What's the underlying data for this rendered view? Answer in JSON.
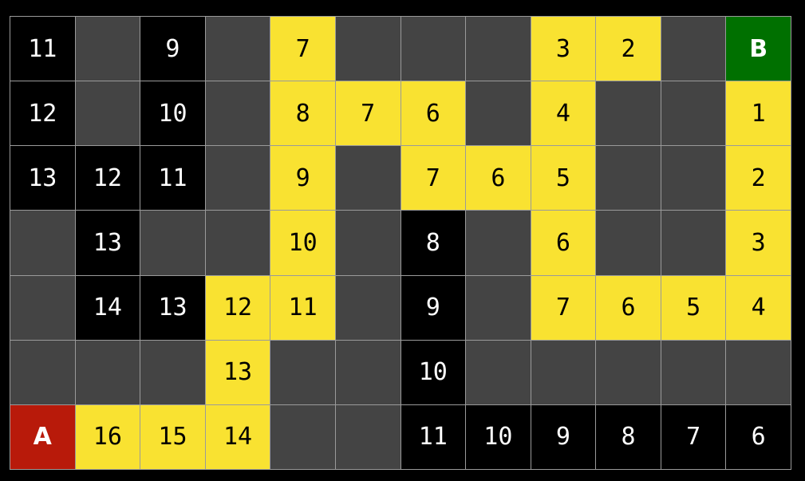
{
  "colors": {
    "wall": "#444444",
    "explored": "#000000",
    "path": "#f9e231",
    "start": "#b81a0a",
    "goal": "#007000"
  },
  "grid": [
    [
      {
        "t": "explored",
        "v": "11"
      },
      {
        "t": "wall",
        "v": ""
      },
      {
        "t": "explored",
        "v": "9"
      },
      {
        "t": "wall",
        "v": ""
      },
      {
        "t": "path",
        "v": "7"
      },
      {
        "t": "wall",
        "v": ""
      },
      {
        "t": "wall",
        "v": ""
      },
      {
        "t": "wall",
        "v": ""
      },
      {
        "t": "path",
        "v": "3"
      },
      {
        "t": "path",
        "v": "2"
      },
      {
        "t": "wall",
        "v": ""
      },
      {
        "t": "goal",
        "v": "B"
      }
    ],
    [
      {
        "t": "explored",
        "v": "12"
      },
      {
        "t": "wall",
        "v": ""
      },
      {
        "t": "explored",
        "v": "10"
      },
      {
        "t": "wall",
        "v": ""
      },
      {
        "t": "path",
        "v": "8"
      },
      {
        "t": "path",
        "v": "7"
      },
      {
        "t": "path",
        "v": "6"
      },
      {
        "t": "wall",
        "v": ""
      },
      {
        "t": "path",
        "v": "4"
      },
      {
        "t": "wall",
        "v": ""
      },
      {
        "t": "wall",
        "v": ""
      },
      {
        "t": "path",
        "v": "1"
      }
    ],
    [
      {
        "t": "explored",
        "v": "13"
      },
      {
        "t": "explored",
        "v": "12"
      },
      {
        "t": "explored",
        "v": "11"
      },
      {
        "t": "wall",
        "v": ""
      },
      {
        "t": "path",
        "v": "9"
      },
      {
        "t": "wall",
        "v": ""
      },
      {
        "t": "path",
        "v": "7"
      },
      {
        "t": "path",
        "v": "6"
      },
      {
        "t": "path",
        "v": "5"
      },
      {
        "t": "wall",
        "v": ""
      },
      {
        "t": "wall",
        "v": ""
      },
      {
        "t": "path",
        "v": "2"
      }
    ],
    [
      {
        "t": "wall",
        "v": ""
      },
      {
        "t": "explored",
        "v": "13"
      },
      {
        "t": "wall",
        "v": ""
      },
      {
        "t": "wall",
        "v": ""
      },
      {
        "t": "path",
        "v": "10"
      },
      {
        "t": "wall",
        "v": ""
      },
      {
        "t": "explored",
        "v": "8"
      },
      {
        "t": "wall",
        "v": ""
      },
      {
        "t": "path",
        "v": "6"
      },
      {
        "t": "wall",
        "v": ""
      },
      {
        "t": "wall",
        "v": ""
      },
      {
        "t": "path",
        "v": "3"
      }
    ],
    [
      {
        "t": "wall",
        "v": ""
      },
      {
        "t": "explored",
        "v": "14"
      },
      {
        "t": "explored",
        "v": "13"
      },
      {
        "t": "path",
        "v": "12"
      },
      {
        "t": "path",
        "v": "11"
      },
      {
        "t": "wall",
        "v": ""
      },
      {
        "t": "explored",
        "v": "9"
      },
      {
        "t": "wall",
        "v": ""
      },
      {
        "t": "path",
        "v": "7"
      },
      {
        "t": "path",
        "v": "6"
      },
      {
        "t": "path",
        "v": "5"
      },
      {
        "t": "path",
        "v": "4"
      }
    ],
    [
      {
        "t": "wall",
        "v": ""
      },
      {
        "t": "wall",
        "v": ""
      },
      {
        "t": "wall",
        "v": ""
      },
      {
        "t": "path",
        "v": "13"
      },
      {
        "t": "wall",
        "v": ""
      },
      {
        "t": "wall",
        "v": ""
      },
      {
        "t": "explored",
        "v": "10"
      },
      {
        "t": "wall",
        "v": ""
      },
      {
        "t": "wall",
        "v": ""
      },
      {
        "t": "wall",
        "v": ""
      },
      {
        "t": "wall",
        "v": ""
      },
      {
        "t": "wall",
        "v": ""
      }
    ],
    [
      {
        "t": "start",
        "v": "A"
      },
      {
        "t": "path",
        "v": "16"
      },
      {
        "t": "path",
        "v": "15"
      },
      {
        "t": "path",
        "v": "14"
      },
      {
        "t": "wall",
        "v": ""
      },
      {
        "t": "wall",
        "v": ""
      },
      {
        "t": "explored",
        "v": "11"
      },
      {
        "t": "explored",
        "v": "10"
      },
      {
        "t": "explored",
        "v": "9"
      },
      {
        "t": "explored",
        "v": "8"
      },
      {
        "t": "explored",
        "v": "7"
      },
      {
        "t": "explored",
        "v": "6"
      }
    ]
  ]
}
